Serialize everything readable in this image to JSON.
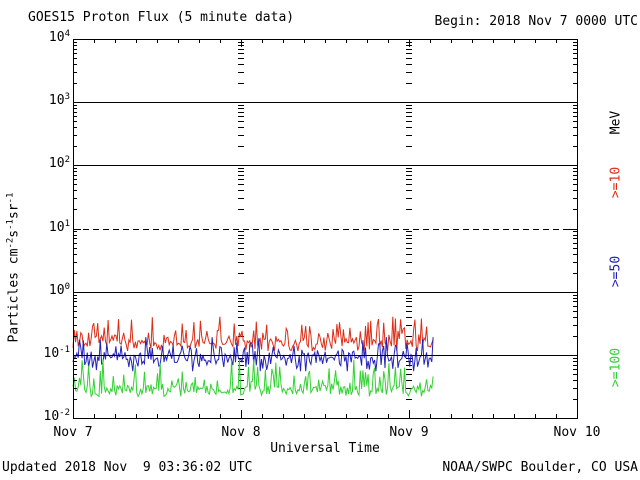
{
  "header": {
    "title": "GOES15 Proton Flux (5 minute data)",
    "begin": "Begin: 2018 Nov 7 0000 UTC"
  },
  "footer": {
    "updated": "Updated 2018 Nov  9 03:36:02 UTC",
    "source": "NOAA/SWPC Boulder, CO USA"
  },
  "chart_data": {
    "type": "line",
    "title": "GOES15 Proton Flux (5 minute data)",
    "begin": "2018 Nov 7 0000 UTC",
    "xlabel": "Universal Time",
    "ylabel": "Particles cm-2 s-1 sr-1",
    "ylabel_parts": [
      {
        "t": "Particles cm"
      },
      {
        "t": "-2",
        "sup": true
      },
      {
        "t": "s"
      },
      {
        "t": "-1",
        "sup": true
      },
      {
        "t": "sr"
      },
      {
        "t": "-1",
        "sup": true
      }
    ],
    "x_tick_labels": [
      "Nov 7",
      "Nov 8",
      "Nov 9",
      "Nov 10"
    ],
    "x_span_days": 3,
    "minutes_per_sample": 5,
    "y_exponents": [
      4,
      3,
      2,
      1,
      0,
      -1,
      -2
    ],
    "ylim": [
      0.01,
      10000
    ],
    "grid": {
      "solid_hlines": [
        1000,
        100,
        1,
        0.1
      ],
      "dashed_hlines": [
        10
      ],
      "day_marker_days": [
        1,
        2
      ],
      "minor_x_per_day": 8
    },
    "right_axis_labels": [
      {
        "text": "MeV",
        "color": "#000000",
        "y": 123
      },
      {
        "text": ">=10",
        "color": "#dd2d16",
        "y": 183
      },
      {
        "text": ">=50",
        "color": "#2222bb",
        "y": 272
      },
      {
        "text": ">=100",
        "color": "#33d133",
        "y": 368
      }
    ],
    "series": [
      {
        "name": ">=10 MeV",
        "color": "#dd2d16",
        "typical": 0.155,
        "min": 0.115,
        "max": 0.4,
        "end_day": 2.15,
        "seed": 101
      },
      {
        "name": ">=50 MeV",
        "color": "#2222bb",
        "typical": 0.088,
        "min": 0.055,
        "max": 0.19,
        "end_day": 2.15,
        "seed": 202
      },
      {
        "name": ">=100 MeV",
        "color": "#33d133",
        "typical": 0.028,
        "min": 0.022,
        "max": 0.085,
        "end_day": 2.15,
        "seed": 303
      }
    ]
  }
}
